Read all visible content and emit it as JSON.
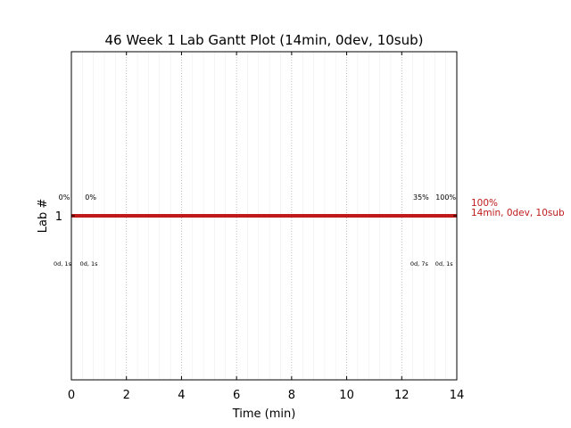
{
  "chart_data": {
    "type": "gantt",
    "title": "46 Week 1 Lab Gantt Plot (14min, 0dev, 10sub)",
    "xlabel": "Time (min)",
    "ylabel": "Lab #",
    "xlim": [
      0,
      14
    ],
    "ylim": [
      0.4,
      1.6
    ],
    "x_ticks": [
      0,
      2,
      4,
      6,
      8,
      10,
      12,
      14
    ],
    "x_tick_labels": [
      "0",
      "2",
      "4",
      "6",
      "8",
      "10",
      "12",
      "14"
    ],
    "y_ticks": [
      1
    ],
    "y_tick_labels": [
      "1"
    ],
    "grid": true,
    "bar": {
      "lab": 1,
      "start": 0,
      "end": 14,
      "color": "#bf1b1b"
    },
    "end_label": [
      "100%",
      "14min, 0dev, 10sub"
    ],
    "end_label_color": "#bf1b1b",
    "points": [
      {
        "x": 0.0,
        "percent": "0%",
        "time": "0d, 1s"
      },
      {
        "x": 0.7,
        "percent": "0%",
        "time": "0d, 1s"
      },
      {
        "x": 12.7,
        "percent": "35%",
        "time": "0d, 7s"
      },
      {
        "x": 13.6,
        "percent": "100%",
        "time": "0d, 1s"
      }
    ]
  }
}
